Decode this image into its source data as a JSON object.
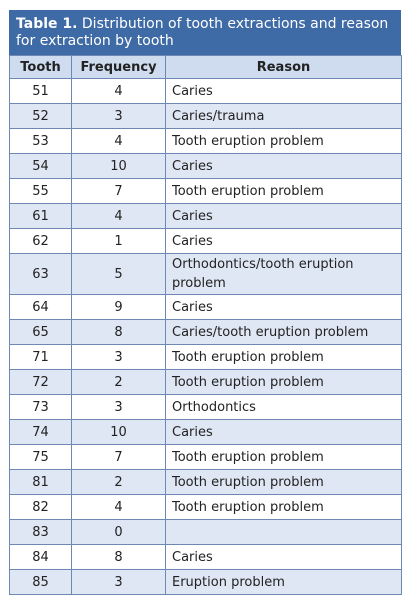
{
  "caption": {
    "label": "Table 1.",
    "text": " Distribution of tooth extractions and reason for extraction by tooth"
  },
  "columns": [
    "Tooth",
    "Frequency",
    "Reason"
  ],
  "rows": [
    {
      "tooth": "51",
      "frequency": "4",
      "reason": "Caries"
    },
    {
      "tooth": "52",
      "frequency": "3",
      "reason": "Caries/trauma"
    },
    {
      "tooth": "53",
      "frequency": "4",
      "reason": "Tooth eruption problem"
    },
    {
      "tooth": "54",
      "frequency": "10",
      "reason": "Caries"
    },
    {
      "tooth": "55",
      "frequency": "7",
      "reason": "Tooth eruption problem"
    },
    {
      "tooth": "61",
      "frequency": "4",
      "reason": "Caries"
    },
    {
      "tooth": "62",
      "frequency": "1",
      "reason": "Caries"
    },
    {
      "tooth": "63",
      "frequency": "5",
      "reason": "Orthodontics/tooth eruption problem"
    },
    {
      "tooth": "64",
      "frequency": "9",
      "reason": "Caries"
    },
    {
      "tooth": "65",
      "frequency": "8",
      "reason": "Caries/tooth eruption problem"
    },
    {
      "tooth": "71",
      "frequency": "3",
      "reason": "Tooth eruption problem"
    },
    {
      "tooth": "72",
      "frequency": "2",
      "reason": "Tooth eruption problem"
    },
    {
      "tooth": "73",
      "frequency": "3",
      "reason": "Orthodontics"
    },
    {
      "tooth": "74",
      "frequency": "10",
      "reason": "Caries"
    },
    {
      "tooth": "75",
      "frequency": "7",
      "reason": "Tooth eruption problem"
    },
    {
      "tooth": "81",
      "frequency": "2",
      "reason": "Tooth eruption problem"
    },
    {
      "tooth": "82",
      "frequency": "4",
      "reason": "Tooth eruption problem"
    },
    {
      "tooth": "83",
      "frequency": "0",
      "reason": ""
    },
    {
      "tooth": "84",
      "frequency": "8",
      "reason": "Caries"
    },
    {
      "tooth": "85",
      "frequency": "3",
      "reason": "Eruption problem"
    }
  ],
  "colors": {
    "caption_bg": "#3e6aa6",
    "header_bg": "#cfdcef",
    "stripe_bg": "#dfe7f4",
    "border": "#6d89b3"
  }
}
